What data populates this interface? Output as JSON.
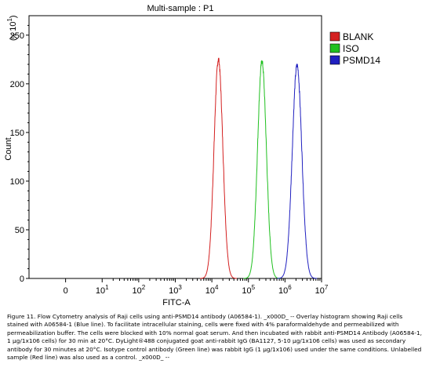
{
  "chart_data": {
    "type": "line",
    "title": "Multi-sample : P1",
    "xlabel": "FITC-A",
    "ylabel": "Count",
    "y_multiplier": "(x 10",
    "y_multiplier_exp": "1",
    "y_multiplier_close": ")",
    "x_scale": "log",
    "xlim": [
      -1,
      7
    ],
    "ylim": [
      0,
      270
    ],
    "x_ticks": [
      {
        "value": 0,
        "base": "0",
        "exp": ""
      },
      {
        "value": 1,
        "base": "10",
        "exp": "1"
      },
      {
        "value": 2,
        "base": "10",
        "exp": "2"
      },
      {
        "value": 3,
        "base": "10",
        "exp": "3"
      },
      {
        "value": 4,
        "base": "10",
        "exp": "4"
      },
      {
        "value": 5,
        "base": "10",
        "exp": "5"
      },
      {
        "value": 6,
        "base": "10",
        "exp": "6"
      },
      {
        "value": 7,
        "base": "10",
        "exp": "7"
      }
    ],
    "y_ticks": [
      0,
      50,
      100,
      150,
      200,
      250
    ],
    "legend_position": "top-right",
    "series": [
      {
        "name": "BLANK",
        "color": "#d42020",
        "peak_x": 4.18,
        "peak_y": 225,
        "width": 0.12
      },
      {
        "name": "ISO",
        "color": "#20c020",
        "peak_x": 5.37,
        "peak_y": 223,
        "width": 0.12
      },
      {
        "name": "PSMD14",
        "color": "#2020c0",
        "peak_x": 6.33,
        "peak_y": 219,
        "width": 0.13
      }
    ]
  },
  "caption": "Figure 11. Flow Cytometry analysis of Raji cells using anti-PSMD14 antibody (A06584-1). _x000D_ -- Overlay histogram showing Raji cells stained with A06584-1 (Blue line). To facilitate intracellular staining, cells were fixed with 4% paraformaldehyde and permeabilized with permeabilization buffer. The cells were blocked with 10% normal goat serum. And then incubated with rabbit anti-PSMD14 Antibody (A06584-1, 1 µg/1x106 cells) for 30 min at 20°C. DyLight®488 conjugated goat anti-rabbit IgG (BA1127, 5-10 µg/1x106 cells) was used as secondary antibody for 30 minutes at 20°C. Isotype control antibody (Green line) was rabbit IgG (1 µg/1x106) used under the same conditions. Unlabelled sample (Red line) was also used as a control. _x000D_ --"
}
